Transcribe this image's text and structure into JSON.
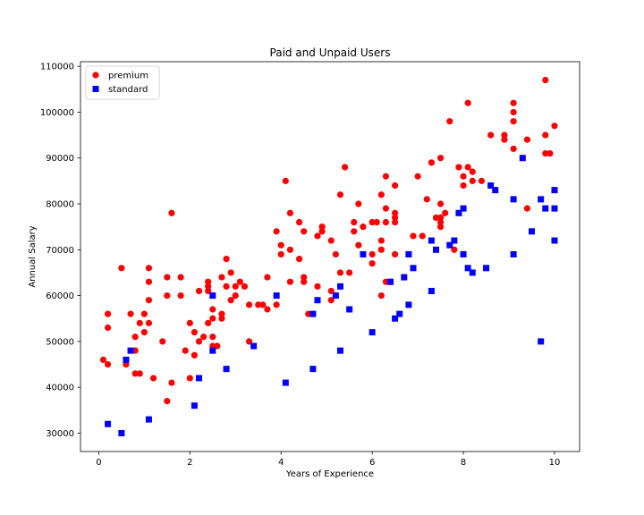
{
  "chart_data": {
    "type": "scatter",
    "title": "Paid and Unpaid Users",
    "xlabel": "Years of Experience",
    "ylabel": "Annual Salary",
    "xlim": [
      -0.4,
      10.55
    ],
    "ylim": [
      26000,
      111000
    ],
    "xticks": [
      0,
      2,
      4,
      6,
      8,
      10
    ],
    "xtick_labels": [
      "0",
      "2",
      "4",
      "6",
      "8",
      "10"
    ],
    "yticks": [
      30000,
      40000,
      50000,
      60000,
      70000,
      80000,
      90000,
      100000,
      110000
    ],
    "ytick_labels": [
      "30000",
      "40000",
      "50000",
      "60000",
      "70000",
      "80000",
      "90000",
      "100000",
      "110000"
    ],
    "grid": false,
    "legend_position": "upper-left",
    "series": [
      {
        "name": "premium",
        "marker": "circle",
        "color": "#ff0000",
        "points": [
          [
            0.1,
            46000
          ],
          [
            0.2,
            45000
          ],
          [
            0.2,
            53000
          ],
          [
            0.2,
            56000
          ],
          [
            0.5,
            66000
          ],
          [
            0.6,
            45000
          ],
          [
            0.7,
            56000
          ],
          [
            0.8,
            48000
          ],
          [
            0.8,
            43000
          ],
          [
            0.8,
            51000
          ],
          [
            0.9,
            54000
          ],
          [
            0.9,
            43000
          ],
          [
            1.0,
            56000
          ],
          [
            1.0,
            52000
          ],
          [
            1.1,
            66000
          ],
          [
            1.1,
            63000
          ],
          [
            1.1,
            59000
          ],
          [
            1.1,
            54000
          ],
          [
            1.2,
            42000
          ],
          [
            1.4,
            50000
          ],
          [
            1.5,
            64000
          ],
          [
            1.5,
            60000
          ],
          [
            1.5,
            37000
          ],
          [
            1.6,
            41000
          ],
          [
            1.6,
            78000
          ],
          [
            1.8,
            64000
          ],
          [
            1.8,
            60000
          ],
          [
            1.9,
            48000
          ],
          [
            2.0,
            54000
          ],
          [
            2.0,
            42000
          ],
          [
            2.1,
            52000
          ],
          [
            2.1,
            47000
          ],
          [
            2.2,
            61000
          ],
          [
            2.2,
            50000
          ],
          [
            2.3,
            51000
          ],
          [
            2.4,
            63000
          ],
          [
            2.4,
            62000
          ],
          [
            2.4,
            61000
          ],
          [
            2.4,
            54000
          ],
          [
            2.5,
            57000
          ],
          [
            2.5,
            55000
          ],
          [
            2.5,
            51000
          ],
          [
            2.5,
            49000
          ],
          [
            2.6,
            49000
          ],
          [
            2.7,
            64000
          ],
          [
            2.7,
            56000
          ],
          [
            2.7,
            55000
          ],
          [
            2.8,
            68000
          ],
          [
            2.8,
            62000
          ],
          [
            2.9,
            65000
          ],
          [
            2.9,
            59000
          ],
          [
            3.0,
            62000
          ],
          [
            3.0,
            60000
          ],
          [
            3.1,
            63000
          ],
          [
            3.2,
            62000
          ],
          [
            3.3,
            58000
          ],
          [
            3.3,
            50000
          ],
          [
            3.5,
            58000
          ],
          [
            3.6,
            58000
          ],
          [
            3.7,
            64000
          ],
          [
            3.7,
            57000
          ],
          [
            3.9,
            74000
          ],
          [
            3.9,
            58000
          ],
          [
            4.0,
            71000
          ],
          [
            4.0,
            69000
          ],
          [
            4.1,
            85000
          ],
          [
            4.2,
            78000
          ],
          [
            4.2,
            70000
          ],
          [
            4.2,
            63000
          ],
          [
            4.4,
            76000
          ],
          [
            4.4,
            68000
          ],
          [
            4.5,
            74000
          ],
          [
            4.5,
            64000
          ],
          [
            4.5,
            63000
          ],
          [
            4.6,
            56000
          ],
          [
            4.7,
            56000
          ],
          [
            4.8,
            73000
          ],
          [
            4.8,
            62000
          ],
          [
            4.9,
            75000
          ],
          [
            4.9,
            74000
          ],
          [
            5.1,
            72000
          ],
          [
            5.1,
            61000
          ],
          [
            5.1,
            59000
          ],
          [
            5.2,
            69000
          ],
          [
            5.3,
            82000
          ],
          [
            5.3,
            65000
          ],
          [
            5.4,
            88000
          ],
          [
            5.5,
            65000
          ],
          [
            5.6,
            76000
          ],
          [
            5.6,
            74000
          ],
          [
            5.7,
            80000
          ],
          [
            5.7,
            71000
          ],
          [
            5.8,
            75000
          ],
          [
            6.0,
            76000
          ],
          [
            6.0,
            69000
          ],
          [
            6.0,
            67000
          ],
          [
            6.1,
            76000
          ],
          [
            6.2,
            82000
          ],
          [
            6.2,
            72000
          ],
          [
            6.2,
            70000
          ],
          [
            6.2,
            60000
          ],
          [
            6.3,
            86000
          ],
          [
            6.3,
            79000
          ],
          [
            6.3,
            76000
          ],
          [
            6.3,
            63000
          ],
          [
            6.4,
            63000
          ],
          [
            6.5,
            84000
          ],
          [
            6.5,
            78000
          ],
          [
            6.5,
            77000
          ],
          [
            6.5,
            76000
          ],
          [
            6.5,
            69000
          ],
          [
            6.9,
            73000
          ],
          [
            7.0,
            86000
          ],
          [
            7.1,
            73000
          ],
          [
            7.2,
            81000
          ],
          [
            7.3,
            89000
          ],
          [
            7.4,
            77000
          ],
          [
            7.5,
            90000
          ],
          [
            7.5,
            80000
          ],
          [
            7.5,
            77000
          ],
          [
            7.5,
            76000
          ],
          [
            7.5,
            75000
          ],
          [
            7.6,
            78000
          ],
          [
            7.7,
            98000
          ],
          [
            7.8,
            70000
          ],
          [
            7.9,
            88000
          ],
          [
            8.0,
            86000
          ],
          [
            8.0,
            84000
          ],
          [
            8.1,
            102000
          ],
          [
            8.1,
            88000
          ],
          [
            8.2,
            87000
          ],
          [
            8.2,
            85000
          ],
          [
            8.4,
            85000
          ],
          [
            8.6,
            95000
          ],
          [
            8.9,
            95000
          ],
          [
            8.9,
            94000
          ],
          [
            9.1,
            102000
          ],
          [
            9.1,
            100000
          ],
          [
            9.1,
            98000
          ],
          [
            9.1,
            92000
          ],
          [
            9.4,
            94000
          ],
          [
            9.4,
            79000
          ],
          [
            9.8,
            107000
          ],
          [
            9.8,
            95000
          ],
          [
            9.8,
            91000
          ],
          [
            9.9,
            91000
          ],
          [
            10.0,
            97000
          ]
        ]
      },
      {
        "name": "standard",
        "marker": "square",
        "color": "#0000ff",
        "points": [
          [
            0.2,
            32000
          ],
          [
            0.5,
            30000
          ],
          [
            0.6,
            46000
          ],
          [
            0.7,
            48000
          ],
          [
            1.1,
            33000
          ],
          [
            2.1,
            36000
          ],
          [
            2.2,
            42000
          ],
          [
            2.5,
            60000
          ],
          [
            2.5,
            48000
          ],
          [
            2.8,
            44000
          ],
          [
            3.4,
            49000
          ],
          [
            3.9,
            60000
          ],
          [
            4.1,
            41000
          ],
          [
            4.7,
            56000
          ],
          [
            4.7,
            44000
          ],
          [
            4.8,
            59000
          ],
          [
            5.2,
            60000
          ],
          [
            5.3,
            62000
          ],
          [
            5.3,
            48000
          ],
          [
            5.5,
            57000
          ],
          [
            5.8,
            69000
          ],
          [
            6.0,
            52000
          ],
          [
            6.4,
            63000
          ],
          [
            6.5,
            55000
          ],
          [
            6.6,
            56000
          ],
          [
            6.7,
            64000
          ],
          [
            6.8,
            69000
          ],
          [
            6.8,
            58000
          ],
          [
            6.9,
            66000
          ],
          [
            7.3,
            72000
          ],
          [
            7.3,
            61000
          ],
          [
            7.4,
            70000
          ],
          [
            7.7,
            71000
          ],
          [
            7.8,
            72000
          ],
          [
            7.9,
            78000
          ],
          [
            8.0,
            79000
          ],
          [
            8.0,
            69000
          ],
          [
            8.1,
            66000
          ],
          [
            8.2,
            65000
          ],
          [
            8.5,
            66000
          ],
          [
            8.6,
            84000
          ],
          [
            8.7,
            83000
          ],
          [
            9.1,
            81000
          ],
          [
            9.1,
            69000
          ],
          [
            9.3,
            90000
          ],
          [
            9.5,
            74000
          ],
          [
            9.7,
            81000
          ],
          [
            9.7,
            50000
          ],
          [
            9.8,
            79000
          ],
          [
            10.0,
            83000
          ],
          [
            10.0,
            79000
          ],
          [
            10.0,
            72000
          ]
        ]
      }
    ]
  }
}
